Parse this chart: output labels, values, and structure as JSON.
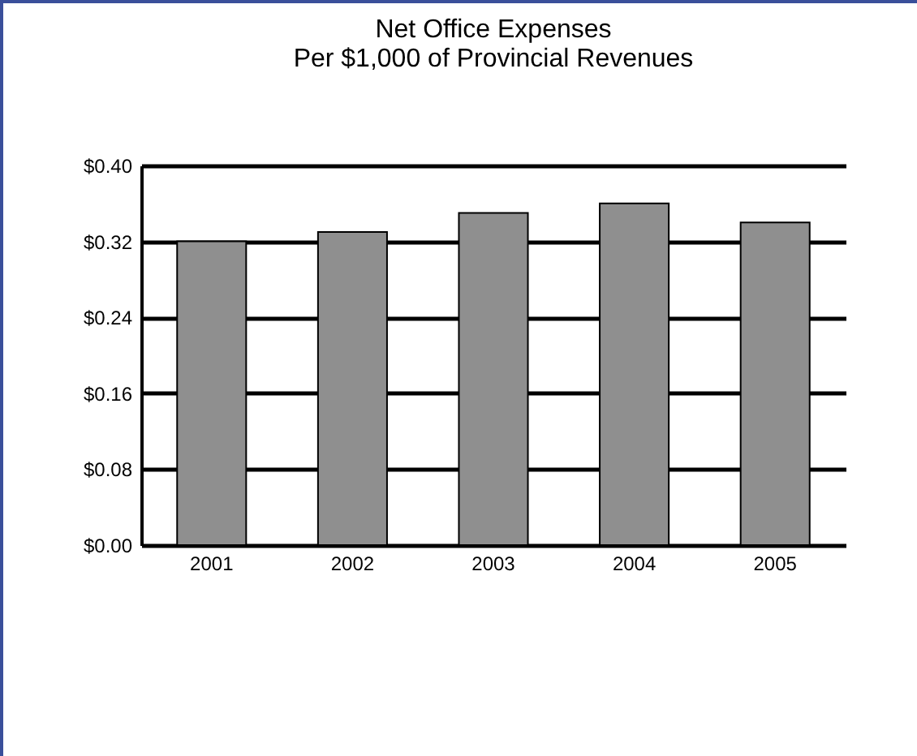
{
  "chart_data": {
    "type": "bar",
    "title": "Net Office Expenses",
    "subtitle": "Per $1,000 of Provincial Revenues",
    "categories": [
      "2001",
      "2002",
      "2003",
      "2004",
      "2005"
    ],
    "values": [
      0.32,
      0.33,
      0.35,
      0.36,
      0.34
    ],
    "color": "#8f8f8f",
    "ylim": [
      0,
      0.4
    ],
    "yticks": [
      {
        "value": 0,
        "label": "$0.00"
      },
      {
        "value": 0.08,
        "label": "$0.08"
      },
      {
        "value": 0.16,
        "label": "$0.16"
      },
      {
        "value": 0.24,
        "label": "$0.24"
      },
      {
        "value": 0.32,
        "label": "$0.32"
      },
      {
        "value": 0.4,
        "label": "$0.40"
      }
    ],
    "grid": "y"
  }
}
